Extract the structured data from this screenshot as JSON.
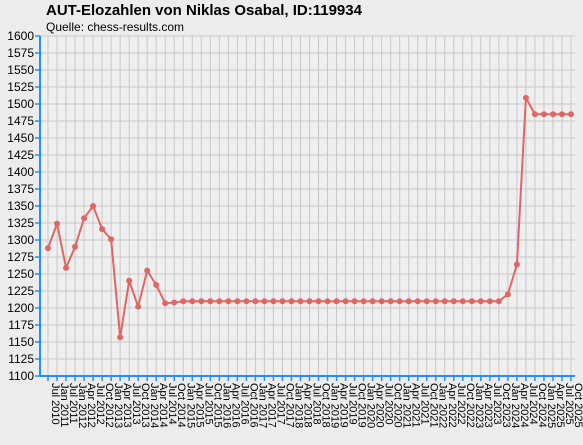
{
  "chart_data": {
    "type": "line",
    "title": "AUT-Elozahlen von Niklas Osabal, ID:119934",
    "subtitle": "Quelle: chess-results.com",
    "xlabel": "",
    "ylabel": "",
    "ylim": [
      1100,
      1600
    ],
    "ytick_step": 25,
    "grid": true,
    "legend": "none",
    "line_color": "#e06666",
    "axis_color": "#1e90ff",
    "categories": [
      "Jul 2010",
      "Jan 2011",
      "Jul 2011",
      "Jan 2012",
      "Apr 2012",
      "Jul 2012",
      "Oct 2012",
      "Jan 2013",
      "Apr 2013",
      "Jul 2013",
      "Oct 2013",
      "Jan 2014",
      "Apr 2014",
      "Jul 2014",
      "Oct 2014",
      "Jan 2015",
      "Apr 2015",
      "Jul 2015",
      "Oct 2015",
      "Jan 2016",
      "Apr 2016",
      "Jul 2016",
      "Oct 2016",
      "Jan 2017",
      "Apr 2017",
      "Jul 2017",
      "Oct 2017",
      "Jan 2018",
      "Apr 2018",
      "Jul 2018",
      "Oct 2018",
      "Jan 2019",
      "Apr 2019",
      "Jul 2019",
      "Oct 2019",
      "Jan 2020",
      "Apr 2020",
      "Jul 2020",
      "Oct 2020",
      "Jan 2021",
      "Apr 2021",
      "Jul 2021",
      "Oct 2021",
      "Jan 2022",
      "Apr 2022",
      "Jul 2022",
      "Oct 2022",
      "Jan 2023",
      "Apr 2023",
      "Jul 2023",
      "Oct 2023",
      "Jan 2024",
      "Apr 2024",
      "Jul 2024",
      "Oct 2024",
      "Jan 2025",
      "Apr 2025",
      "Jul 2025",
      "Oct 2025"
    ],
    "series": [
      {
        "values": [
          1288,
          1324,
          1259,
          1290,
          1332,
          1350,
          1316,
          1301,
          1157,
          1240,
          1202,
          1255,
          1234,
          1207,
          1208,
          1210,
          1210,
          1210,
          1210,
          1210,
          1210,
          1210,
          1210,
          1210,
          1210,
          1210,
          1210,
          1210,
          1210,
          1210,
          1210,
          1210,
          1210,
          1210,
          1210,
          1210,
          1210,
          1210,
          1210,
          1210,
          1210,
          1210,
          1210,
          1210,
          1210,
          1210,
          1210,
          1210,
          1210,
          1210,
          1210,
          1220,
          1264,
          1509,
          1485,
          1485,
          1485,
          1485,
          1485
        ]
      }
    ]
  }
}
